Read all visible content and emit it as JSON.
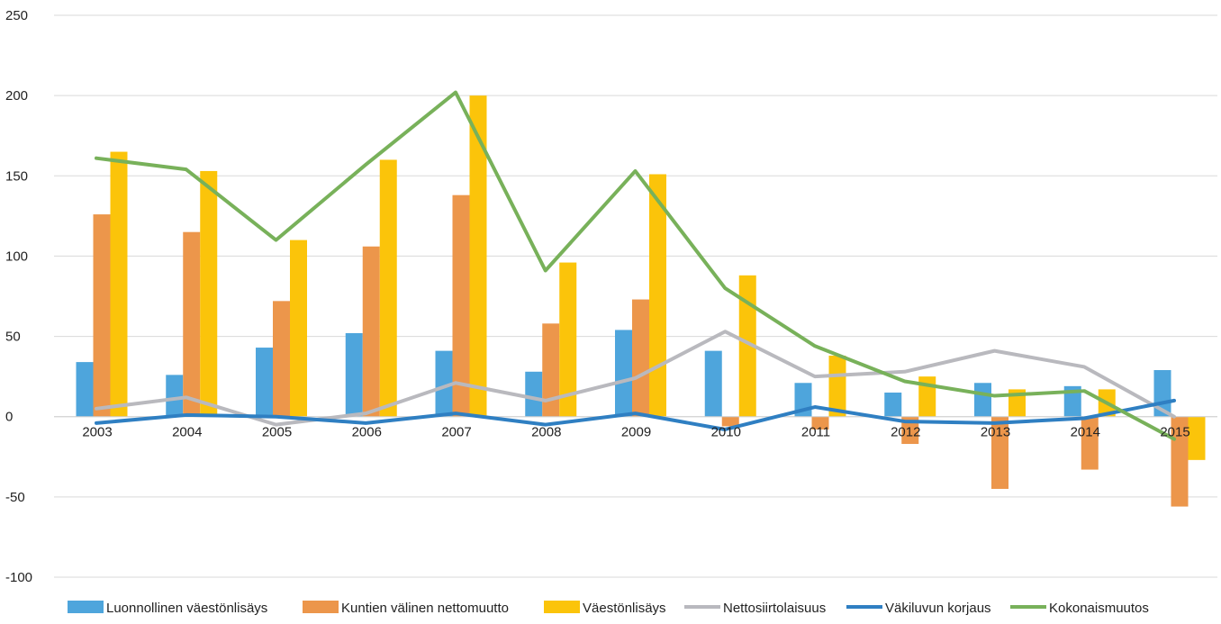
{
  "chart_data": {
    "type": "bar",
    "categories": [
      "2003",
      "2004",
      "2005",
      "2006",
      "2007",
      "2008",
      "2009",
      "2010",
      "2011",
      "2012",
      "2013",
      "2014",
      "2015"
    ],
    "ylim": [
      -100,
      250
    ],
    "yticks": [
      -100,
      -50,
      0,
      50,
      100,
      150,
      200,
      250
    ],
    "grid": true,
    "legend_position": "bottom",
    "bar_series": [
      {
        "name": "Luonnollinen väestönlisäys",
        "color": "#4ea5dc",
        "values": [
          34,
          26,
          43,
          52,
          41,
          28,
          54,
          41,
          21,
          15,
          21,
          19,
          29
        ]
      },
      {
        "name": "Kuntien välinen nettomuutto",
        "color": "#ec964b",
        "values": [
          126,
          115,
          72,
          106,
          138,
          58,
          73,
          -6,
          -8,
          -17,
          -45,
          -33,
          -56
        ]
      },
      {
        "name": "Väestönlisäys",
        "color": "#fbc40a",
        "values": [
          165,
          153,
          110,
          160,
          200,
          96,
          151,
          88,
          38,
          25,
          17,
          17,
          -27
        ]
      }
    ],
    "line_series": [
      {
        "name": "Nettosiirtolaisuus",
        "color": "#b9b9be",
        "values": [
          5,
          12,
          -5,
          2,
          21,
          10,
          24,
          53,
          25,
          28,
          41,
          31,
          0
        ]
      },
      {
        "name": "Väkiluvun korjaus",
        "color": "#2f7fc2",
        "values": [
          -4,
          1,
          0,
          -4,
          2,
          -5,
          2,
          -8,
          6,
          -3,
          -4,
          -1,
          10
        ]
      },
      {
        "name": "Kokonaismuutos",
        "color": "#78b15a",
        "values": [
          161,
          154,
          110,
          157,
          202,
          91,
          153,
          80,
          44,
          22,
          13,
          16,
          -14
        ]
      }
    ]
  }
}
